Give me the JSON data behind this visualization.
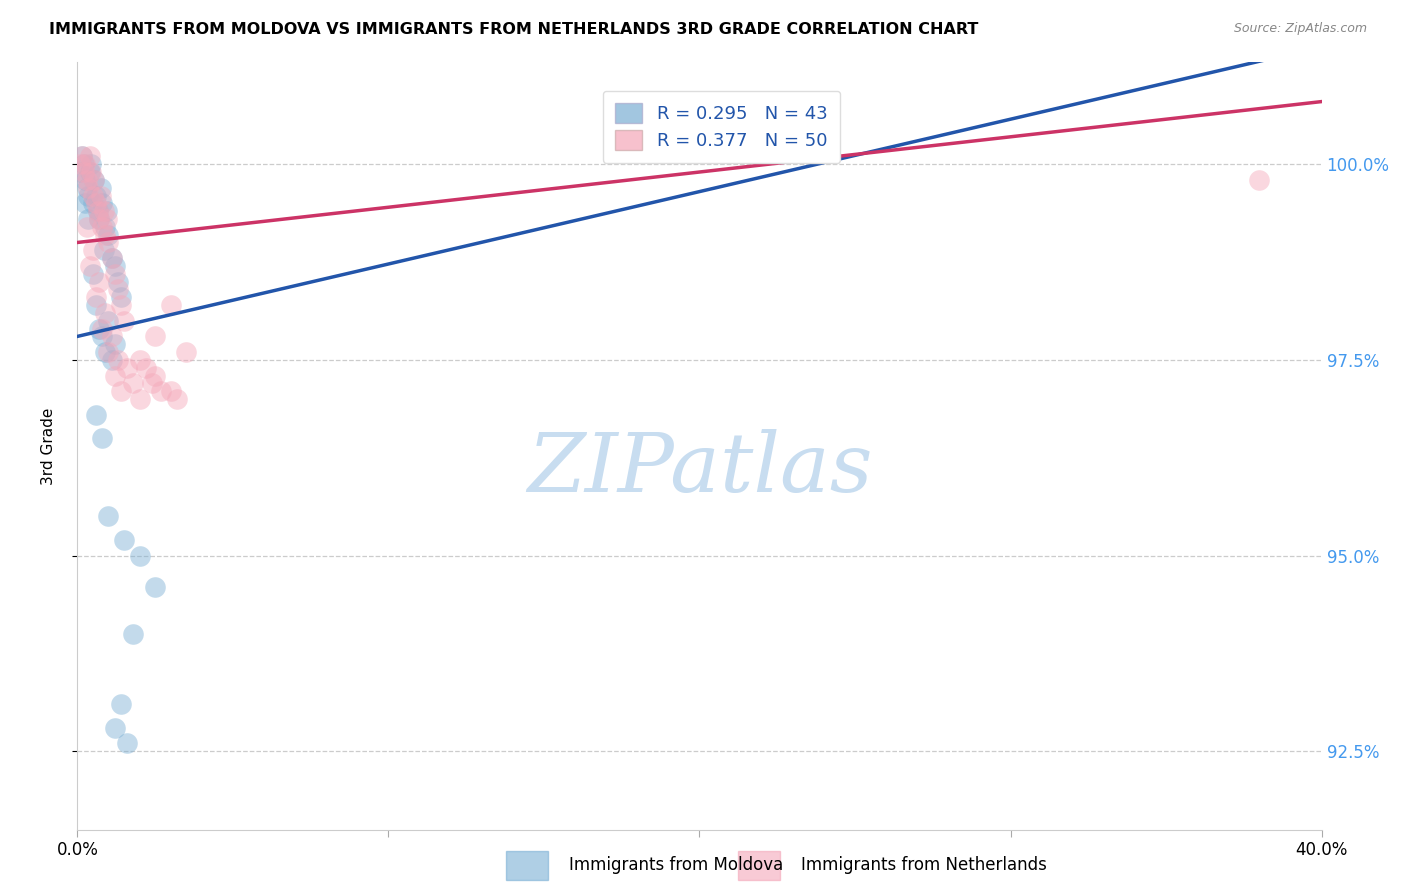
{
  "title": "IMMIGRANTS FROM MOLDOVA VS IMMIGRANTS FROM NETHERLANDS 3RD GRADE CORRELATION CHART",
  "source": "Source: ZipAtlas.com",
  "ylabel": "3rd Grade",
  "xlim": [
    0.0,
    40.0
  ],
  "ylim": [
    91.5,
    101.3
  ],
  "yticks": [
    92.5,
    95.0,
    97.5,
    100.0
  ],
  "ytick_labels": [
    "92.5%",
    "95.0%",
    "97.5%",
    "100.0%"
  ],
  "xtick_positions": [
    0,
    10,
    20,
    30,
    40
  ],
  "xtick_labels": [
    "0.0%",
    "",
    "",
    "",
    "40.0%"
  ],
  "moldova_color": "#7bafd4",
  "netherlands_color": "#f4a7b9",
  "moldova_line_color": "#2255aa",
  "netherlands_line_color": "#cc3366",
  "moldova_R": 0.295,
  "moldova_N": 43,
  "netherlands_R": 0.377,
  "netherlands_N": 50,
  "legend_label_moldova": "Immigrants from Moldova",
  "legend_label_netherlands": "Immigrants from Netherlands",
  "md_x": [
    0.1,
    0.15,
    0.2,
    0.25,
    0.3,
    0.35,
    0.4,
    0.45,
    0.5,
    0.55,
    0.6,
    0.65,
    0.7,
    0.75,
    0.8,
    0.85,
    0.9,
    0.95,
    1.0,
    1.1,
    1.2,
    1.3,
    1.4,
    0.25,
    0.35,
    0.5,
    0.6,
    0.7,
    0.8,
    0.9,
    1.0,
    1.1,
    1.2,
    0.6,
    0.8,
    1.0,
    1.5,
    2.0,
    2.5,
    1.2,
    1.4,
    1.6,
    1.8
  ],
  "md_y": [
    99.9,
    100.1,
    100.0,
    99.8,
    99.7,
    99.6,
    99.9,
    100.0,
    99.5,
    99.8,
    99.6,
    99.4,
    99.3,
    99.7,
    99.5,
    98.9,
    99.2,
    99.4,
    99.1,
    98.8,
    98.7,
    98.5,
    98.3,
    99.5,
    99.3,
    98.6,
    98.2,
    97.9,
    97.8,
    97.6,
    98.0,
    97.5,
    97.7,
    96.8,
    96.5,
    95.5,
    95.2,
    95.0,
    94.6,
    92.8,
    93.1,
    92.6,
    94.0
  ],
  "nl_x": [
    0.1,
    0.15,
    0.2,
    0.25,
    0.3,
    0.35,
    0.4,
    0.45,
    0.5,
    0.55,
    0.6,
    0.65,
    0.7,
    0.75,
    0.8,
    0.85,
    0.9,
    0.95,
    1.0,
    1.1,
    1.2,
    1.3,
    1.4,
    1.5,
    0.3,
    0.5,
    0.7,
    0.9,
    1.1,
    1.3,
    0.4,
    0.6,
    0.8,
    1.0,
    1.2,
    1.4,
    1.6,
    1.8,
    2.0,
    2.5,
    3.0,
    3.5,
    2.5,
    3.0,
    2.0,
    2.2,
    2.4,
    2.7,
    3.2,
    38.0
  ],
  "nl_y": [
    100.0,
    100.1,
    99.9,
    100.0,
    99.8,
    99.7,
    100.1,
    99.9,
    99.6,
    99.8,
    99.5,
    99.4,
    99.3,
    99.6,
    99.2,
    99.4,
    99.1,
    99.3,
    99.0,
    98.8,
    98.6,
    98.4,
    98.2,
    98.0,
    99.2,
    98.9,
    98.5,
    98.1,
    97.8,
    97.5,
    98.7,
    98.3,
    97.9,
    97.6,
    97.3,
    97.1,
    97.4,
    97.2,
    97.0,
    97.8,
    98.2,
    97.6,
    97.3,
    97.1,
    97.5,
    97.4,
    97.2,
    97.1,
    97.0,
    99.8
  ],
  "watermark_text": "ZIPatlas",
  "watermark_color": "#c8ddf0",
  "grid_color": "#cccccc",
  "background_color": "#ffffff"
}
